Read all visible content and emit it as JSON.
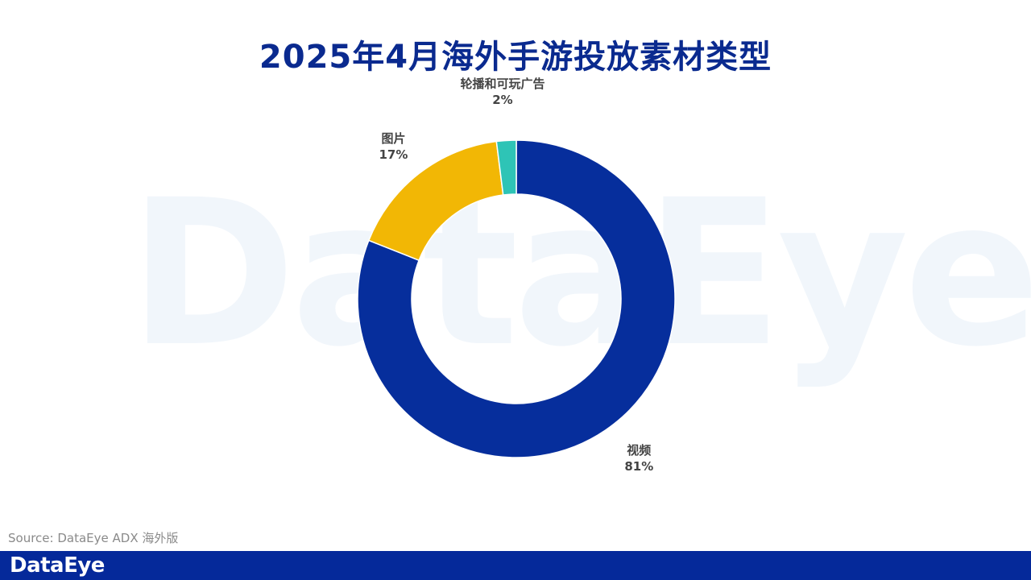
{
  "watermark": "DataEye",
  "footer": {
    "source": "Source: DataEye ADX 海外版",
    "logo": "DataEye",
    "bar_color": "#05299a"
  },
  "chart_data": {
    "type": "pie",
    "style": "donut",
    "title": "2025年4月海外手游投放素材类型",
    "legend": "none",
    "slices": [
      {
        "label": "视频",
        "value": 81,
        "value_label": "81%",
        "color": "#062e9c"
      },
      {
        "label": "图片",
        "value": 17,
        "value_label": "17%",
        "color": "#f2b705"
      },
      {
        "label": "轮播和可玩广告",
        "value": 2,
        "value_label": "2%",
        "color": "#2ec4b6"
      }
    ]
  }
}
